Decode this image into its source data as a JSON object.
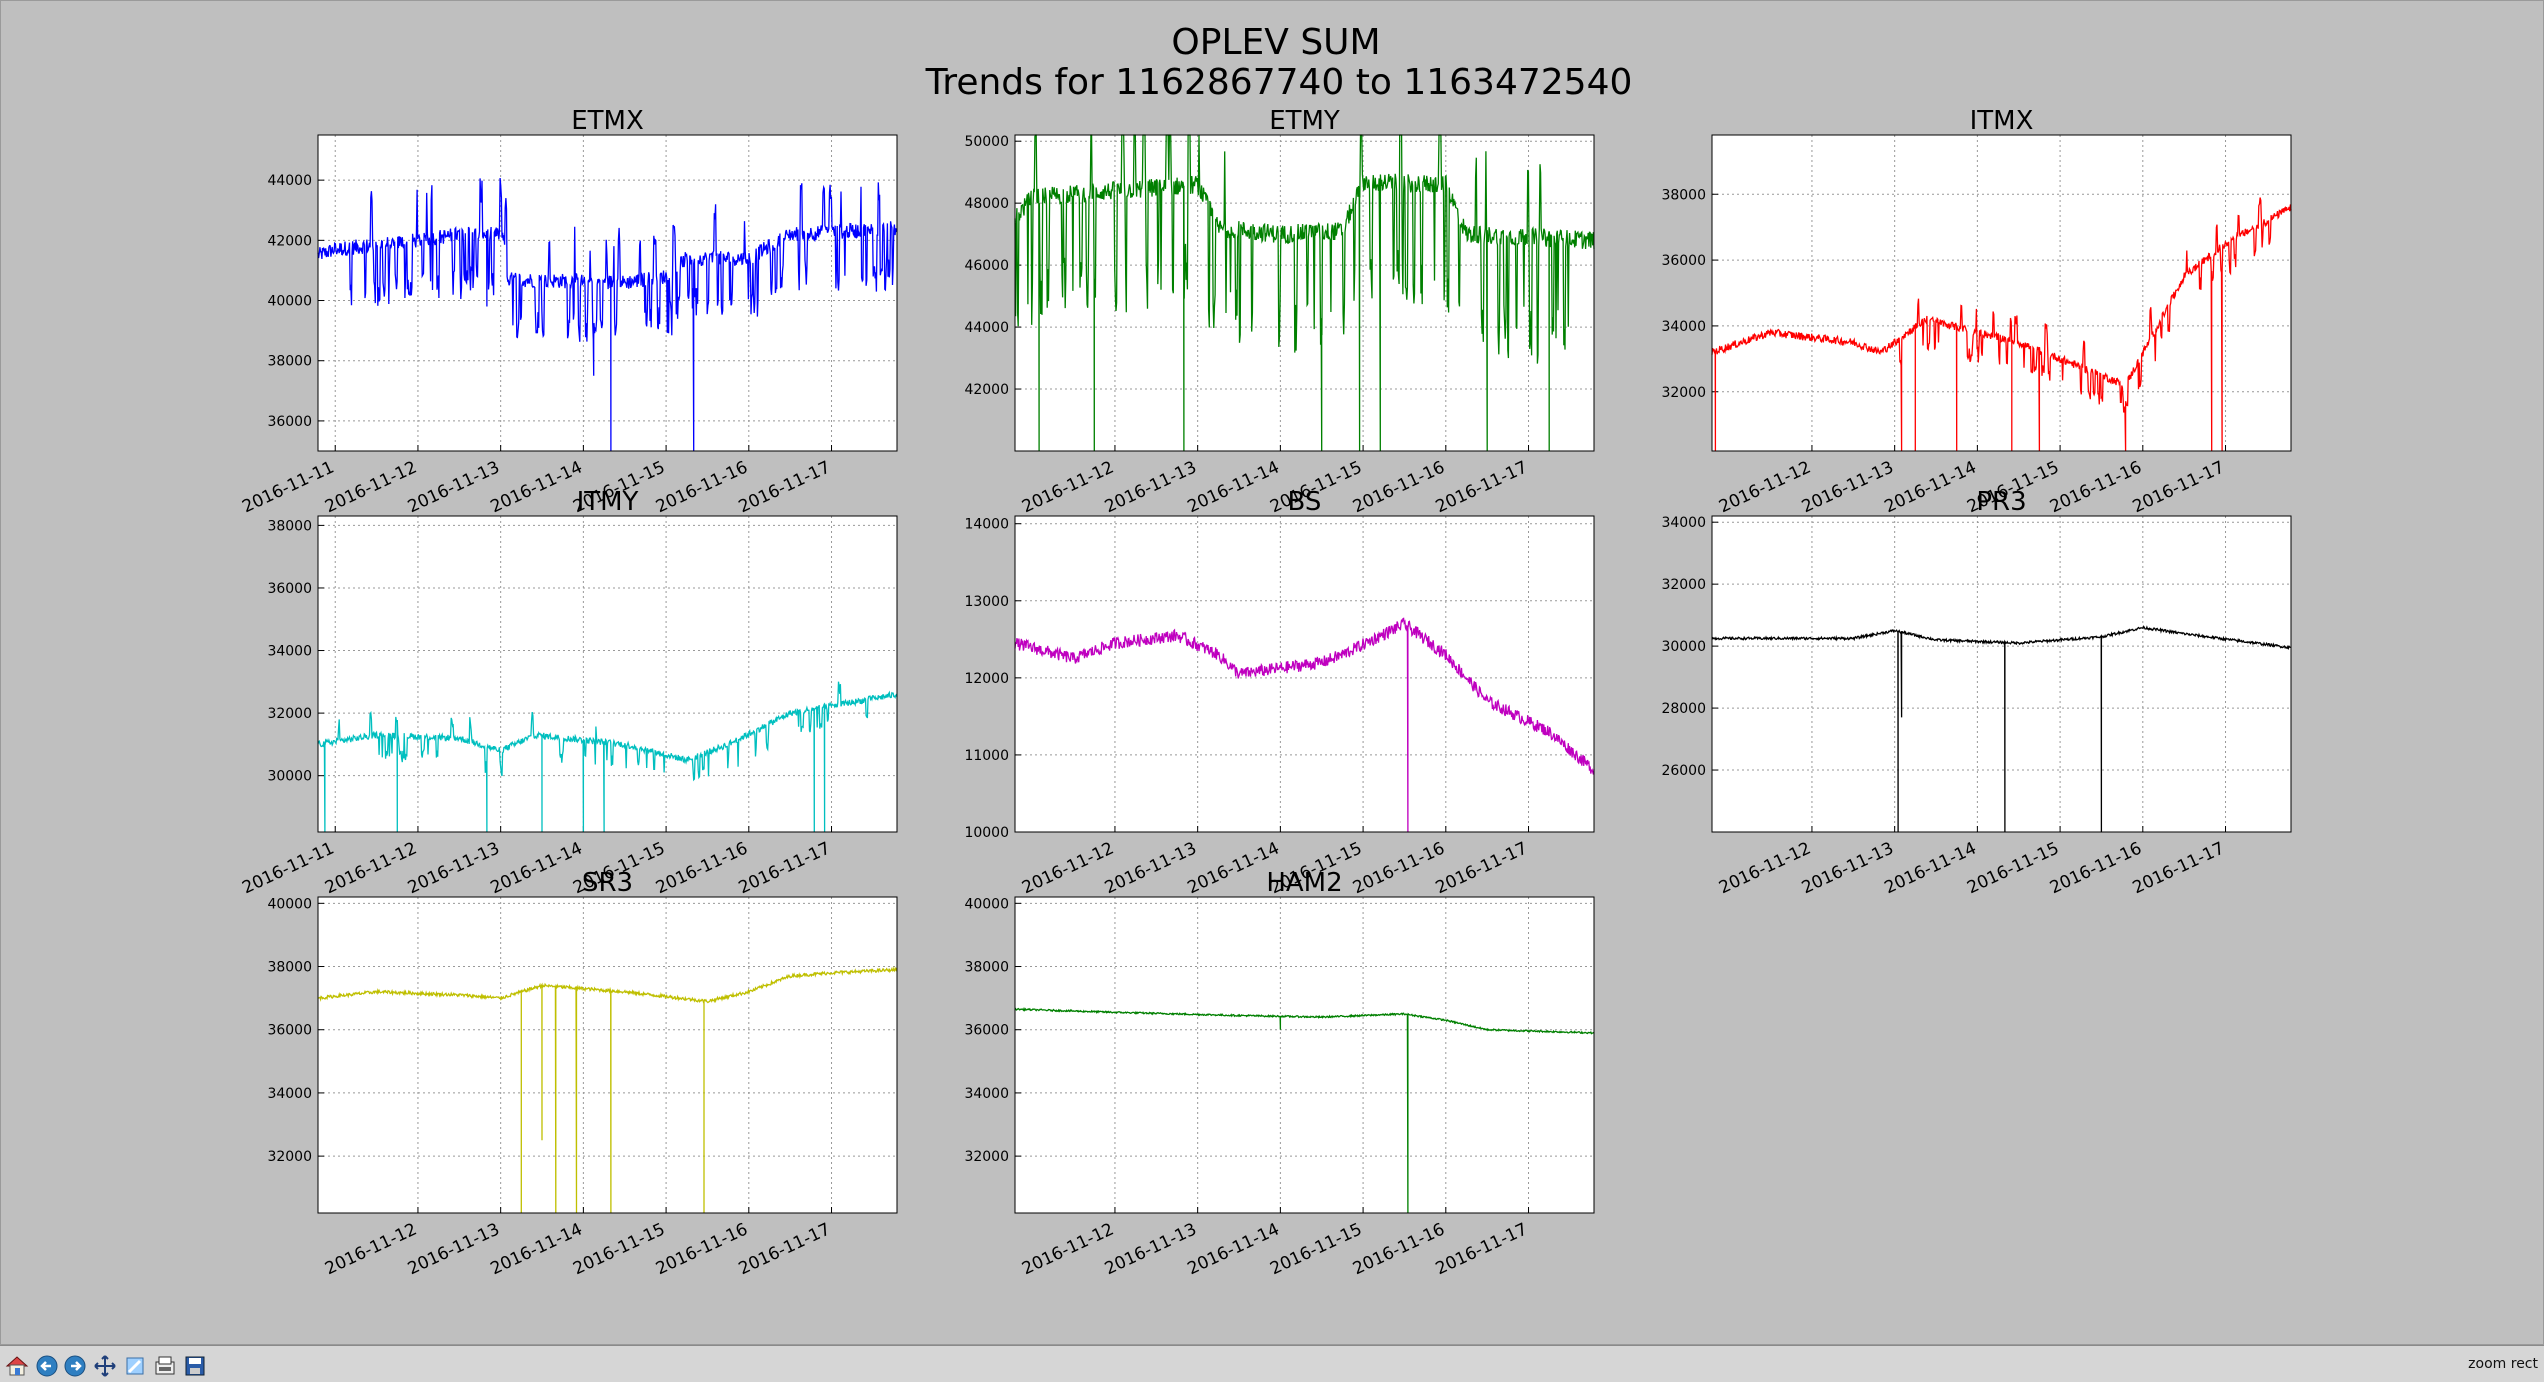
{
  "figure": {
    "title": "OPLEV SUM",
    "subtitle": "Trends for 1162867740 to 1163472540",
    "background": "#bfbfbf"
  },
  "toolbar": {
    "buttons": [
      {
        "name": "home-button",
        "icon": "home-icon"
      },
      {
        "name": "back-button",
        "icon": "arrow-left-icon"
      },
      {
        "name": "forward-button",
        "icon": "arrow-right-icon"
      },
      {
        "name": "pan-button",
        "icon": "move-icon"
      },
      {
        "name": "zoom-button",
        "icon": "zoom-icon"
      },
      {
        "name": "subplots-button",
        "icon": "configure-icon"
      },
      {
        "name": "save-button",
        "icon": "save-icon"
      }
    ],
    "mode": "zoom rect"
  },
  "chart_data": [
    {
      "type": "line",
      "title": "ETMX",
      "color": "#0000ff",
      "xlim": [
        "2016-11-10 19:00",
        "2016-11-17 19:00"
      ],
      "xticks": [
        "2016-11-11",
        "2016-11-12",
        "2016-11-13",
        "2016-11-14",
        "2016-11-15",
        "2016-11-16",
        "2016-11-17"
      ],
      "ylim": [
        35000,
        45500
      ],
      "yticks": [
        36000,
        38000,
        40000,
        42000,
        44000
      ],
      "grid": true,
      "baseline": [
        [
          "2016-11-10 19:00",
          41500
        ],
        [
          "2016-11-11 00:00",
          41700
        ],
        [
          "2016-11-12 00:00",
          42000
        ],
        [
          "2016-11-12 12:00",
          42200
        ],
        [
          "2016-11-13 01:00",
          42200
        ],
        [
          "2016-11-13 02:00",
          40700
        ],
        [
          "2016-11-14 12:00",
          40600
        ],
        [
          "2016-11-15 00:00",
          40800
        ],
        [
          "2016-11-15 06:00",
          41400
        ],
        [
          "2016-11-16 00:00",
          41400
        ],
        [
          "2016-11-16 12:00",
          42200
        ],
        [
          "2016-11-17 19:00",
          42400
        ]
      ],
      "dips": [
        [
          "2016-11-14 08:00",
          35000
        ],
        [
          "2016-11-15 08:00",
          35000
        ],
        [
          "2016-11-14 03:00",
          37500
        ],
        [
          "2016-11-12 20:00",
          39800
        ]
      ],
      "noise": 250,
      "spike_amp": 1500,
      "spike_start": "2016-11-11 00:00",
      "spike_end": "2016-11-17 18:00",
      "spike_prob": 0.14
    },
    {
      "type": "line",
      "title": "ETMY",
      "color": "#008000",
      "xlim": [
        "2016-11-10 19:00",
        "2016-11-17 19:00"
      ],
      "xticks": [
        "2016-11-12",
        "2016-11-13",
        "2016-11-14",
        "2016-11-15",
        "2016-11-16",
        "2016-11-17"
      ],
      "ylim": [
        40000,
        50200
      ],
      "yticks": [
        42000,
        44000,
        46000,
        48000,
        50000
      ],
      "grid": true,
      "baseline": [
        [
          "2016-11-10 19:00",
          47500
        ],
        [
          "2016-11-11 00:00",
          48200
        ],
        [
          "2016-11-12 12:00",
          48500
        ],
        [
          "2016-11-13 00:00",
          48600
        ],
        [
          "2016-11-13 06:00",
          47200
        ],
        [
          "2016-11-14 00:00",
          47000
        ],
        [
          "2016-11-14 18:00",
          47100
        ],
        [
          "2016-11-15 00:00",
          48700
        ],
        [
          "2016-11-16 00:00",
          48600
        ],
        [
          "2016-11-16 06:00",
          47000
        ],
        [
          "2016-11-17 19:00",
          46800
        ]
      ],
      "dips": [
        [
          "2016-11-11 02:00",
          40000
        ],
        [
          "2016-11-11 18:00",
          40000
        ],
        [
          "2016-11-12 20:00",
          40000
        ],
        [
          "2016-11-14 12:00",
          40000
        ],
        [
          "2016-11-14 23:00",
          40000
        ],
        [
          "2016-11-15 05:00",
          40000
        ],
        [
          "2016-11-16 12:00",
          40000
        ],
        [
          "2016-11-17 06:00",
          40000
        ]
      ],
      "noise": 300,
      "spike_amp": 3000,
      "spike_start": "2016-11-10 19:00",
      "spike_end": "2016-11-17 12:00",
      "spike_prob": 0.12
    },
    {
      "type": "line",
      "title": "ITMX",
      "color": "#ff0000",
      "xlim": [
        "2016-11-10 19:00",
        "2016-11-17 19:00"
      ],
      "xticks": [
        "2016-11-12",
        "2016-11-13",
        "2016-11-14",
        "2016-11-15",
        "2016-11-16",
        "2016-11-17"
      ],
      "ylim": [
        30200,
        39800
      ],
      "yticks": [
        32000,
        34000,
        36000,
        38000
      ],
      "grid": true,
      "baseline": [
        [
          "2016-11-10 19:00",
          33200
        ],
        [
          "2016-11-11 12:00",
          33800
        ],
        [
          "2016-11-12 12:00",
          33500
        ],
        [
          "2016-11-12 20:00",
          33200
        ],
        [
          "2016-11-13 09:00",
          34200
        ],
        [
          "2016-11-14 12:00",
          33500
        ],
        [
          "2016-11-15 12:00",
          32500
        ],
        [
          "2016-11-15 19:00",
          32200
        ],
        [
          "2016-11-16 12:00",
          35500
        ],
        [
          "2016-11-17 00:00",
          36500
        ],
        [
          "2016-11-17 19:00",
          37600
        ]
      ],
      "dips": [
        [
          "2016-11-10 20:00",
          30200
        ],
        [
          "2016-11-13 02:00",
          30200
        ],
        [
          "2016-11-13 06:00",
          30200
        ],
        [
          "2016-11-13 18:00",
          30200
        ],
        [
          "2016-11-14 10:00",
          30200
        ],
        [
          "2016-11-14 18:00",
          30200
        ],
        [
          "2016-11-15 19:00",
          30200
        ],
        [
          "2016-11-16 20:00",
          30200
        ],
        [
          "2016-11-16 23:00",
          30200
        ]
      ],
      "noise": 120,
      "spike_amp": 700,
      "spike_start": "2016-11-12 22:00",
      "spike_end": "2016-11-17 18:00",
      "spike_prob": 0.08
    },
    {
      "type": "line",
      "title": "ITMY",
      "color": "#00bfbf",
      "xlim": [
        "2016-11-10 19:00",
        "2016-11-17 19:00"
      ],
      "xticks": [
        "2016-11-11",
        "2016-11-12",
        "2016-11-13",
        "2016-11-14",
        "2016-11-15",
        "2016-11-16",
        "2016-11-17"
      ],
      "ylim": [
        28200,
        38300
      ],
      "yticks": [
        30000,
        32000,
        34000,
        36000,
        38000
      ],
      "grid": true,
      "baseline": [
        [
          "2016-11-10 19:00",
          31000
        ],
        [
          "2016-11-11 12:00",
          31300
        ],
        [
          "2016-11-12 12:00",
          31200
        ],
        [
          "2016-11-13 00:00",
          30800
        ],
        [
          "2016-11-13 10:00",
          31300
        ],
        [
          "2016-11-14 12:00",
          31000
        ],
        [
          "2016-11-15 06:00",
          30500
        ],
        [
          "2016-11-15 18:00",
          31000
        ],
        [
          "2016-11-16 12:00",
          32000
        ],
        [
          "2016-11-17 19:00",
          32600
        ]
      ],
      "dips": [
        [
          "2016-11-10 21:00",
          28200
        ],
        [
          "2016-11-11 18:00",
          28200
        ],
        [
          "2016-11-12 20:00",
          28200
        ],
        [
          "2016-11-13 12:00",
          28200
        ],
        [
          "2016-11-14 00:00",
          28200
        ],
        [
          "2016-11-14 06:00",
          28200
        ],
        [
          "2016-11-16 19:00",
          28200
        ],
        [
          "2016-11-16 22:00",
          28200
        ]
      ],
      "noise": 100,
      "spike_amp": 600,
      "spike_start": "2016-11-11 00:00",
      "spike_end": "2016-11-17 12:00",
      "spike_prob": 0.07
    },
    {
      "type": "line",
      "title": "BS",
      "color": "#bf00bf",
      "xlim": [
        "2016-11-10 19:00",
        "2016-11-17 19:00"
      ],
      "xticks": [
        "2016-11-12",
        "2016-11-13",
        "2016-11-14",
        "2016-11-15",
        "2016-11-16",
        "2016-11-17"
      ],
      "ylim": [
        10000,
        14100
      ],
      "yticks": [
        10000,
        11000,
        12000,
        13000,
        14000
      ],
      "grid": true,
      "baseline": [
        [
          "2016-11-10 19:00",
          12450
        ],
        [
          "2016-11-11 12:00",
          12250
        ],
        [
          "2016-11-12 00:00",
          12450
        ],
        [
          "2016-11-12 18:00",
          12550
        ],
        [
          "2016-11-13 06:00",
          12300
        ],
        [
          "2016-11-13 12:00",
          12050
        ],
        [
          "2016-11-14 12:00",
          12200
        ],
        [
          "2016-11-14 18:00",
          12300
        ],
        [
          "2016-11-15 12:00",
          12700
        ],
        [
          "2016-11-16 00:00",
          12300
        ],
        [
          "2016-11-16 12:00",
          11700
        ],
        [
          "2016-11-17 06:00",
          11300
        ],
        [
          "2016-11-17 19:00",
          10800
        ]
      ],
      "dips": [
        [
          "2016-11-15 13:00",
          10000
        ]
      ],
      "noise": 80,
      "spike_amp": 0,
      "spike_start": "2016-11-10 19:00",
      "spike_end": "2016-11-17 19:00",
      "spike_prob": 0
    },
    {
      "type": "line",
      "title": "PR3",
      "color": "#000000",
      "xlim": [
        "2016-11-10 19:00",
        "2016-11-17 19:00"
      ],
      "xticks": [
        "2016-11-12",
        "2016-11-13",
        "2016-11-14",
        "2016-11-15",
        "2016-11-16",
        "2016-11-17"
      ],
      "ylim": [
        24000,
        34200
      ],
      "yticks": [
        26000,
        28000,
        30000,
        32000,
        34000
      ],
      "grid": true,
      "baseline": [
        [
          "2016-11-10 19:00",
          30250
        ],
        [
          "2016-11-12 12:00",
          30250
        ],
        [
          "2016-11-13 00:00",
          30500
        ],
        [
          "2016-11-13 12:00",
          30200
        ],
        [
          "2016-11-14 12:00",
          30100
        ],
        [
          "2016-11-15 12:00",
          30300
        ],
        [
          "2016-11-16 00:00",
          30600
        ],
        [
          "2016-11-16 12:00",
          30400
        ],
        [
          "2016-11-17 19:00",
          29950
        ]
      ],
      "dips": [
        [
          "2016-11-13 01:00",
          24000
        ],
        [
          "2016-11-13 02:00",
          27700
        ],
        [
          "2016-11-14 08:00",
          24000
        ],
        [
          "2016-11-15 12:00",
          24000
        ]
      ],
      "noise": 40,
      "spike_amp": 0,
      "spike_start": "2016-11-10 19:00",
      "spike_end": "2016-11-17 19:00",
      "spike_prob": 0
    },
    {
      "type": "line",
      "title": "SR3",
      "color": "#bfbf00",
      "xlim": [
        "2016-11-10 19:00",
        "2016-11-17 19:00"
      ],
      "xticks": [
        "2016-11-12",
        "2016-11-13",
        "2016-11-14",
        "2016-11-15",
        "2016-11-16",
        "2016-11-17"
      ],
      "ylim": [
        30200,
        40200
      ],
      "yticks": [
        32000,
        34000,
        36000,
        38000,
        40000
      ],
      "grid": true,
      "baseline": [
        [
          "2016-11-10 19:00",
          37000
        ],
        [
          "2016-11-11 12:00",
          37200
        ],
        [
          "2016-11-12 12:00",
          37100
        ],
        [
          "2016-11-13 00:00",
          37000
        ],
        [
          "2016-11-13 12:00",
          37400
        ],
        [
          "2016-11-14 12:00",
          37200
        ],
        [
          "2016-11-15 12:00",
          36900
        ],
        [
          "2016-11-16 00:00",
          37200
        ],
        [
          "2016-11-16 12:00",
          37700
        ],
        [
          "2016-11-17 00:00",
          37800
        ],
        [
          "2016-11-17 19:00",
          37900
        ]
      ],
      "dips": [
        [
          "2016-11-13 06:00",
          30200
        ],
        [
          "2016-11-13 12:00",
          32500
        ],
        [
          "2016-11-13 16:00",
          30200
        ],
        [
          "2016-11-13 22:00",
          30200
        ],
        [
          "2016-11-14 08:00",
          30200
        ],
        [
          "2016-11-15 11:00",
          30200
        ]
      ],
      "noise": 50,
      "spike_amp": 0,
      "spike_start": "2016-11-10 19:00",
      "spike_end": "2016-11-17 19:00",
      "spike_prob": 0
    },
    {
      "type": "line",
      "title": "HAM2",
      "color": "#008000",
      "xlim": [
        "2016-11-10 19:00",
        "2016-11-17 19:00"
      ],
      "xticks": [
        "2016-11-12",
        "2016-11-13",
        "2016-11-14",
        "2016-11-15",
        "2016-11-16",
        "2016-11-17"
      ],
      "ylim": [
        30200,
        40200
      ],
      "yticks": [
        32000,
        34000,
        36000,
        38000,
        40000
      ],
      "grid": true,
      "baseline": [
        [
          "2016-11-10 19:00",
          36650
        ],
        [
          "2016-11-12 00:00",
          36550
        ],
        [
          "2016-11-13 12:00",
          36450
        ],
        [
          "2016-11-14 12:00",
          36400
        ],
        [
          "2016-11-15 12:00",
          36500
        ],
        [
          "2016-11-16 00:00",
          36300
        ],
        [
          "2016-11-16 12:00",
          36000
        ],
        [
          "2016-11-17 19:00",
          35900
        ]
      ],
      "dips": [
        [
          "2016-11-15 13:00",
          30200
        ],
        [
          "2016-11-14 00:00",
          36000
        ]
      ],
      "noise": 25,
      "spike_amp": 0,
      "spike_start": "2016-11-10 19:00",
      "spike_end": "2016-11-17 19:00",
      "spike_prob": 0
    }
  ]
}
